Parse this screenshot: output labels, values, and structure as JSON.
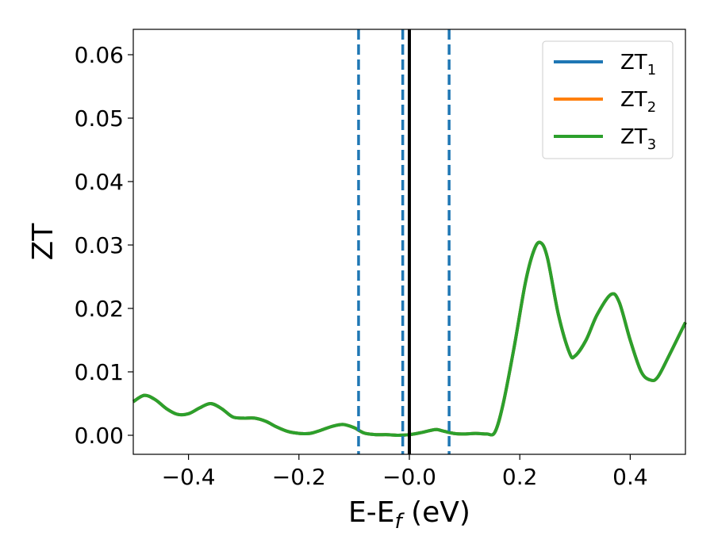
{
  "chart_data": {
    "type": "line",
    "xlabel": "E-E",
    "xlabel_sub": "f",
    "xlabel_unit": " (eV)",
    "ylabel": "ZT",
    "xlim": [
      -0.5,
      0.5
    ],
    "ylim": [
      -0.003,
      0.064
    ],
    "xticks": [
      -0.4,
      -0.2,
      0.0,
      0.2,
      0.4
    ],
    "xtick_labels": [
      "−0.4",
      "−0.2",
      "−0.0",
      "0.2",
      "0.4"
    ],
    "yticks": [
      0.0,
      0.01,
      0.02,
      0.03,
      0.04,
      0.05,
      0.06
    ],
    "ytick_labels": [
      "0.00",
      "0.01",
      "0.02",
      "0.03",
      "0.04",
      "0.05",
      "0.06"
    ],
    "grid": false,
    "legend_position": "top-right",
    "series": [
      {
        "name": "ZT",
        "sub": "1",
        "color": "#1f77b4",
        "x": [
          -0.5,
          -0.48,
          -0.46,
          -0.44,
          -0.42,
          -0.4,
          -0.38,
          -0.36,
          -0.34,
          -0.32,
          -0.3,
          -0.28,
          -0.26,
          -0.24,
          -0.22,
          -0.2,
          -0.18,
          -0.16,
          -0.14,
          -0.12,
          -0.1,
          -0.09,
          -0.08,
          -0.06,
          -0.04,
          -0.02,
          0.0,
          0.02,
          0.04,
          0.05,
          0.06,
          0.08,
          0.1,
          0.12,
          0.14,
          0.155,
          0.17,
          0.19,
          0.21,
          0.225,
          0.237,
          0.25,
          0.27,
          0.29,
          0.3,
          0.32,
          0.34,
          0.365,
          0.38,
          0.4,
          0.42,
          0.437,
          0.45,
          0.47,
          0.5
        ],
        "y": [
          0.0053,
          0.0063,
          0.0056,
          0.0042,
          0.0033,
          0.0034,
          0.0043,
          0.005,
          0.0042,
          0.0029,
          0.0027,
          0.0027,
          0.0022,
          0.0013,
          0.0006,
          0.0003,
          0.0003,
          0.0008,
          0.0014,
          0.0017,
          0.0012,
          0.0007,
          0.0003,
          0.0001,
          0.0001,
          0.0,
          0.0001,
          0.0004,
          0.0008,
          0.0009,
          0.0007,
          0.0003,
          0.0002,
          0.0003,
          0.0002,
          0.0005,
          0.005,
          0.014,
          0.024,
          0.029,
          0.0304,
          0.028,
          0.019,
          0.013,
          0.0125,
          0.015,
          0.019,
          0.0222,
          0.021,
          0.015,
          0.01,
          0.0087,
          0.0092,
          0.0125,
          0.0178
        ]
      },
      {
        "name": "ZT",
        "sub": "2",
        "color": "#ff7f0e",
        "x": [
          -0.5,
          -0.48,
          -0.46,
          -0.44,
          -0.42,
          -0.4,
          -0.38,
          -0.36,
          -0.34,
          -0.32,
          -0.3,
          -0.28,
          -0.26,
          -0.24,
          -0.22,
          -0.2,
          -0.18,
          -0.16,
          -0.14,
          -0.12,
          -0.1,
          -0.09,
          -0.08,
          -0.06,
          -0.04,
          -0.02,
          0.0,
          0.02,
          0.04,
          0.05,
          0.06,
          0.08,
          0.1,
          0.12,
          0.14,
          0.155,
          0.17,
          0.19,
          0.21,
          0.225,
          0.237,
          0.25,
          0.27,
          0.29,
          0.3,
          0.32,
          0.34,
          0.365,
          0.38,
          0.4,
          0.42,
          0.437,
          0.45,
          0.47,
          0.5
        ],
        "y": [
          0.0053,
          0.0063,
          0.0056,
          0.0042,
          0.0033,
          0.0034,
          0.0043,
          0.005,
          0.0042,
          0.0029,
          0.0027,
          0.0027,
          0.0022,
          0.0013,
          0.0006,
          0.0003,
          0.0003,
          0.0008,
          0.0014,
          0.0017,
          0.0012,
          0.0007,
          0.0003,
          0.0001,
          0.0001,
          0.0,
          0.0001,
          0.0004,
          0.0008,
          0.0009,
          0.0007,
          0.0003,
          0.0002,
          0.0003,
          0.0002,
          0.0005,
          0.005,
          0.014,
          0.024,
          0.029,
          0.0304,
          0.028,
          0.019,
          0.013,
          0.0125,
          0.015,
          0.019,
          0.0222,
          0.021,
          0.015,
          0.01,
          0.0087,
          0.0092,
          0.0125,
          0.0178
        ]
      },
      {
        "name": "ZT",
        "sub": "3",
        "color": "#2ca02c",
        "x": [
          -0.5,
          -0.48,
          -0.46,
          -0.44,
          -0.42,
          -0.4,
          -0.38,
          -0.36,
          -0.34,
          -0.32,
          -0.3,
          -0.28,
          -0.26,
          -0.24,
          -0.22,
          -0.2,
          -0.18,
          -0.16,
          -0.14,
          -0.12,
          -0.1,
          -0.09,
          -0.08,
          -0.06,
          -0.04,
          -0.02,
          0.0,
          0.02,
          0.04,
          0.05,
          0.06,
          0.08,
          0.1,
          0.12,
          0.14,
          0.155,
          0.17,
          0.19,
          0.21,
          0.225,
          0.237,
          0.25,
          0.27,
          0.29,
          0.3,
          0.32,
          0.34,
          0.365,
          0.38,
          0.4,
          0.42,
          0.437,
          0.45,
          0.47,
          0.5
        ],
        "y": [
          0.0053,
          0.0063,
          0.0056,
          0.0042,
          0.0033,
          0.0034,
          0.0043,
          0.005,
          0.0042,
          0.0029,
          0.0027,
          0.0027,
          0.0022,
          0.0013,
          0.0006,
          0.0003,
          0.0003,
          0.0008,
          0.0014,
          0.0017,
          0.0012,
          0.0007,
          0.0003,
          0.0001,
          0.0001,
          0.0,
          0.0001,
          0.0004,
          0.0008,
          0.0009,
          0.0007,
          0.0003,
          0.0002,
          0.0003,
          0.0002,
          0.0005,
          0.005,
          0.014,
          0.024,
          0.029,
          0.0304,
          0.028,
          0.019,
          0.013,
          0.0125,
          0.015,
          0.019,
          0.0222,
          0.021,
          0.015,
          0.01,
          0.0087,
          0.0092,
          0.0125,
          0.0178
        ]
      }
    ],
    "vlines": [
      {
        "x": -0.092,
        "style": "dashed",
        "color": "#1f77b4"
      },
      {
        "x": -0.012,
        "style": "dashed",
        "color": "#1f77b4"
      },
      {
        "x": 0.0,
        "style": "solid",
        "color": "#000000"
      },
      {
        "x": 0.072,
        "style": "dashed",
        "color": "#1f77b4"
      }
    ]
  }
}
